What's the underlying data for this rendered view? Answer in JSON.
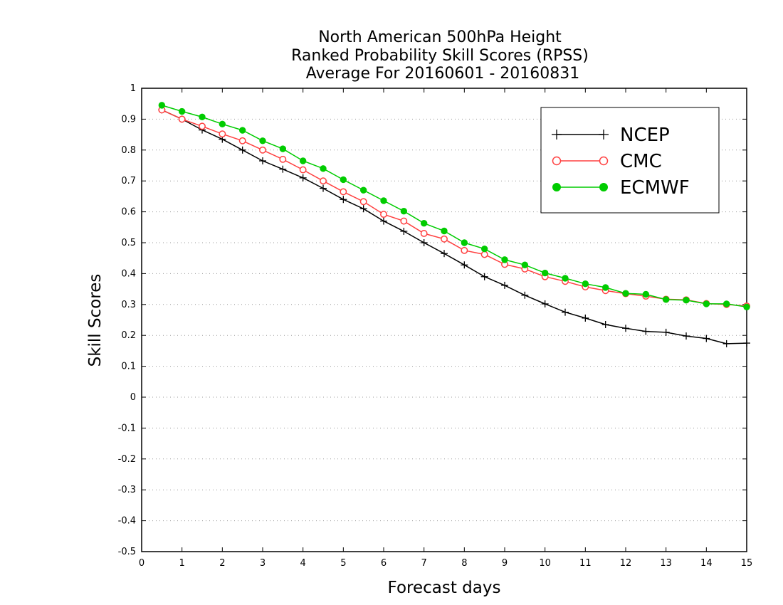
{
  "chart_data": {
    "type": "line",
    "title": [
      "North American 500hPa Height",
      "Ranked Probability Skill Scores (RPSS)",
      "Average For 20160601 - 20160831"
    ],
    "xlabel": "Forecast days",
    "ylabel": "Skill Scores",
    "xlim": [
      0,
      15
    ],
    "ylim": [
      -0.5,
      1
    ],
    "x_ticks": [
      "0",
      "1",
      "2",
      "3",
      "4",
      "5",
      "6",
      "7",
      "8",
      "9",
      "10",
      "11",
      "12",
      "13",
      "14",
      "15"
    ],
    "y_ticks": [
      "-0.5",
      "-0.4",
      "-0.3",
      "-0.2",
      "-0.1",
      "0",
      "0.1",
      "0.2",
      "0.3",
      "0.4",
      "0.5",
      "0.6",
      "0.7",
      "0.8",
      "0.9",
      "1"
    ],
    "grid": "horizontal dotted",
    "legend_position": "top-right",
    "x": [
      0.5,
      1,
      1.5,
      2,
      2.5,
      3,
      3.5,
      4,
      4.5,
      5,
      5.5,
      6,
      6.5,
      7,
      7.5,
      8,
      8.5,
      9,
      9.5,
      10,
      10.5,
      11,
      11.5,
      12,
      12.5,
      13,
      13.5,
      14,
      14.5,
      15
    ],
    "series": [
      {
        "name": "NCEP",
        "color": "#000000",
        "marker": "plus",
        "values": [
          0.93,
          0.9,
          0.865,
          0.835,
          0.8,
          0.765,
          0.738,
          0.71,
          0.676,
          0.64,
          0.61,
          0.57,
          0.537,
          0.5,
          0.465,
          0.428,
          0.39,
          0.362,
          0.33,
          0.302,
          0.275,
          0.256,
          0.235,
          0.223,
          0.213,
          0.21,
          0.198,
          0.19,
          0.173,
          0.175
        ]
      },
      {
        "name": "CMC",
        "color": "#ff4040",
        "marker": "open-circle",
        "values": [
          0.93,
          0.9,
          0.877,
          0.852,
          0.83,
          0.8,
          0.77,
          0.736,
          0.7,
          0.665,
          0.633,
          0.592,
          0.57,
          0.53,
          0.512,
          0.475,
          0.462,
          0.43,
          0.415,
          0.39,
          0.375,
          0.357,
          0.345,
          0.335,
          0.327,
          0.317,
          0.315,
          0.303,
          0.3,
          0.295
        ]
      },
      {
        "name": "ECMWF",
        "color": "#00cc00",
        "marker": "filled-circle",
        "values": [
          0.945,
          0.925,
          0.907,
          0.884,
          0.864,
          0.83,
          0.804,
          0.765,
          0.74,
          0.704,
          0.67,
          0.636,
          0.602,
          0.563,
          0.538,
          0.5,
          0.48,
          0.445,
          0.428,
          0.402,
          0.385,
          0.367,
          0.355,
          0.336,
          0.333,
          0.316,
          0.314,
          0.302,
          0.302,
          0.292
        ]
      }
    ]
  }
}
